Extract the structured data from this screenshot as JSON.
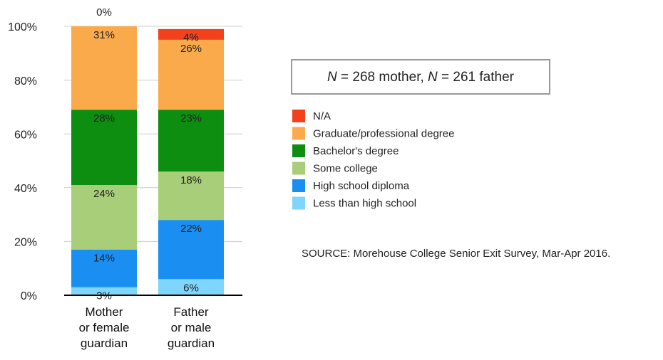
{
  "chart_data": {
    "type": "stacked_bar",
    "categories": [
      "Mother\nor female\nguardian",
      "Father\nor male\nguardian"
    ],
    "series": [
      {
        "name": "Less than high school",
        "color": "#7fd5fb",
        "values": [
          3,
          6
        ],
        "value_labels": [
          "3%",
          "6%"
        ]
      },
      {
        "name": "High school diploma",
        "color": "#1b8ff1",
        "values": [
          14,
          22
        ],
        "value_labels": [
          "14%",
          "22%"
        ]
      },
      {
        "name": "Some college",
        "color": "#a9ce79",
        "values": [
          24,
          18
        ],
        "value_labels": [
          "24%",
          "18%"
        ]
      },
      {
        "name": "Bachelor's degree",
        "color": "#0e8e10",
        "values": [
          28,
          23
        ],
        "value_labels": [
          "28%",
          "23%"
        ]
      },
      {
        "name": "Graduate/professional degree",
        "color": "#fbaa4b",
        "values": [
          31,
          26
        ],
        "value_labels": [
          "31%",
          "26%"
        ]
      },
      {
        "name": "N/A",
        "color": "#f2421d",
        "values": [
          0,
          4
        ],
        "value_labels": [
          "0%",
          "4%"
        ]
      }
    ],
    "ylim": [
      0,
      100
    ],
    "yticks": [
      {
        "value": 0,
        "label": "0%"
      },
      {
        "value": 20,
        "label": "20%"
      },
      {
        "value": 40,
        "label": "40%"
      },
      {
        "value": 60,
        "label": "60%"
      },
      {
        "value": 80,
        "label": "80%"
      },
      {
        "value": 100,
        "label": "100%"
      }
    ],
    "grid": true,
    "annotation_parts": [
      "N",
      " = 268 mother, ",
      "N",
      " = 261 father"
    ],
    "source": "SOURCE:  Morehouse College Senior Exit Survey, Mar-Apr 2016."
  }
}
